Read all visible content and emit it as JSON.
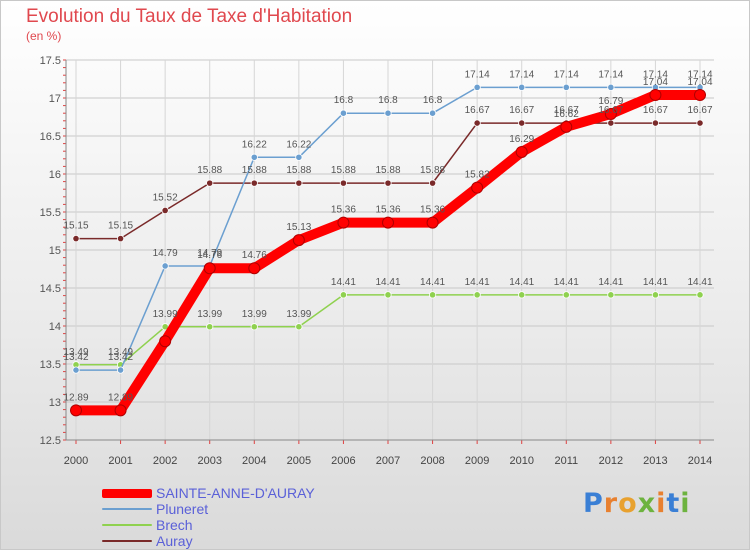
{
  "title": "Evolution du Taux de Taxe d'Habitation",
  "subtitle": "(en %)",
  "logo": {
    "text": "Proxiti",
    "letter_colors": [
      "#3a7fd5",
      "#e8802f",
      "#e8a12f",
      "#6db33f",
      "#e8802f",
      "#3a7fd5",
      "#6db33f"
    ]
  },
  "chart_data": {
    "type": "line",
    "x": [
      2000,
      2001,
      2002,
      2003,
      2004,
      2005,
      2006,
      2007,
      2008,
      2009,
      2010,
      2011,
      2012,
      2013,
      2014
    ],
    "ylim": [
      12.5,
      17.5
    ],
    "yticks": [
      "12.5",
      "13",
      "13.5",
      "14",
      "14.5",
      "15",
      "15.5",
      "16",
      "16.5",
      "17",
      "17.5"
    ],
    "series": [
      {
        "name": "SAINTE-ANNE-D'AURAY",
        "color": "#ff0000",
        "values": [
          12.89,
          12.89,
          13.8,
          14.76,
          14.76,
          15.13,
          15.36,
          15.36,
          15.36,
          15.82,
          16.29,
          16.62,
          16.79,
          17.04,
          17.04
        ],
        "labels": [
          "12.89",
          "12.89",
          "",
          "14.76",
          "14.76",
          "15.13",
          "15.36",
          "15.36",
          "15.36",
          "15.82",
          "16.29",
          "16.62",
          "16.79",
          "17.04",
          "17.04"
        ]
      },
      {
        "name": "Pluneret",
        "color": "#6b9fd0",
        "values": [
          13.42,
          13.42,
          14.79,
          14.79,
          16.22,
          16.22,
          16.8,
          16.8,
          16.8,
          17.14,
          17.14,
          17.14,
          17.14,
          17.14,
          17.14
        ],
        "labels": [
          "13.42",
          "13.42",
          "14.79",
          "14.79",
          "16.22",
          "16.22",
          "16.8",
          "16.8",
          "16.8",
          "17.14",
          "17.14",
          "17.14",
          "17.14",
          "17.14",
          "17.14"
        ]
      },
      {
        "name": "Brech",
        "color": "#8fd14f",
        "values": [
          13.49,
          13.49,
          13.99,
          13.99,
          13.99,
          13.99,
          14.41,
          14.41,
          14.41,
          14.41,
          14.41,
          14.41,
          14.41,
          14.41,
          14.41
        ],
        "labels": [
          "13.49",
          "13.49",
          "13.99",
          "13.99",
          "13.99",
          "13.99",
          "14.41",
          "14.41",
          "14.41",
          "14.41",
          "14.41",
          "14.41",
          "14.41",
          "14.41",
          "14.41"
        ]
      },
      {
        "name": "Auray",
        "color": "#7a2a2a",
        "values": [
          15.15,
          15.15,
          15.52,
          15.88,
          15.88,
          15.88,
          15.88,
          15.88,
          15.88,
          16.67,
          16.67,
          16.67,
          16.67,
          16.67,
          16.67
        ],
        "labels": [
          "15.15",
          "15.15",
          "15.52",
          "15.88",
          "15.88",
          "15.88",
          "15.88",
          "15.88",
          "15.88",
          "16.67",
          "16.67",
          "16.67",
          "16.67",
          "16.67",
          "16.67"
        ]
      }
    ]
  }
}
